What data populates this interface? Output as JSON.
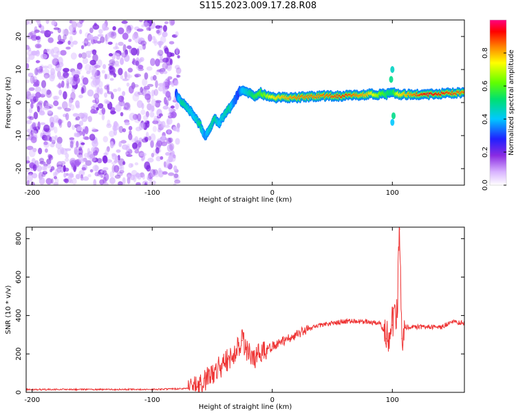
{
  "title": "S115.2023.009.17.28.R08",
  "chart_data": [
    {
      "type": "heatmap",
      "xlabel": "Height of straight line (km)",
      "ylabel": "Frequency (Hz)",
      "xlim": [
        -205,
        160
      ],
      "ylim": [
        -25,
        25
      ],
      "x_ticks": [
        -200,
        -100,
        0,
        100
      ],
      "y_ticks": [
        -20,
        -10,
        0,
        10,
        20
      ],
      "colorbar": {
        "label": "Normalized spectral amplitude",
        "range": [
          0,
          1
        ],
        "ticks": [
          "0.0",
          "0.2",
          "0.4",
          "0.6",
          "0.8"
        ]
      },
      "noise_region_x": [
        -205,
        -78
      ],
      "ridge": {
        "x": [
          -80,
          -75,
          -70,
          -65,
          -60,
          -56,
          -52,
          -48,
          -44,
          -40,
          -36,
          -32,
          -28,
          -25,
          -20,
          -15,
          -10,
          -5,
          0,
          10,
          20,
          40,
          60,
          80,
          95,
          100,
          105,
          130,
          160
        ],
        "freq": [
          2.5,
          0,
          -2,
          -4,
          -7,
          -10,
          -8,
          -5,
          -6,
          -4,
          -2,
          0,
          3,
          4,
          3,
          2,
          3,
          2,
          1.5,
          1.5,
          1.5,
          2,
          2,
          2.5,
          2.5,
          3,
          2.5,
          2.5,
          3
        ],
        "amplitude": [
          0.3,
          0.5,
          0.45,
          0.4,
          0.5,
          0.35,
          0.45,
          0.5,
          0.4,
          0.45,
          0.5,
          0.35,
          0.3,
          0.4,
          0.45,
          0.55,
          0.6,
          0.65,
          0.75,
          0.8,
          0.85,
          0.85,
          0.9,
          0.8,
          0.55,
          0.5,
          0.75,
          0.95,
          0.85
        ]
      }
    },
    {
      "type": "line",
      "xlabel": "Height of straight line (km)",
      "ylabel": "SNR (10 * v/v)",
      "xlim": [
        -205,
        160
      ],
      "ylim": [
        0,
        860
      ],
      "x_ticks": [
        -200,
        -100,
        0,
        100
      ],
      "y_ticks": [
        0,
        200,
        400,
        600,
        800
      ],
      "series": [
        {
          "color": "#ee3333",
          "x": [
            -205,
            -150,
            -100,
            -70,
            -60,
            -50,
            -40,
            -30,
            -25,
            -20,
            -15,
            -10,
            0,
            10,
            20,
            30,
            40,
            50,
            60,
            70,
            80,
            90,
            95,
            100,
            104,
            106,
            108,
            110,
            120,
            130,
            140,
            150,
            160
          ],
          "values": [
            15,
            15,
            15,
            20,
            40,
            100,
            150,
            220,
            270,
            200,
            180,
            200,
            240,
            270,
            300,
            330,
            350,
            360,
            370,
            370,
            365,
            360,
            280,
            350,
            430,
            850,
            280,
            340,
            340,
            340,
            340,
            365,
            360
          ]
        }
      ]
    }
  ]
}
